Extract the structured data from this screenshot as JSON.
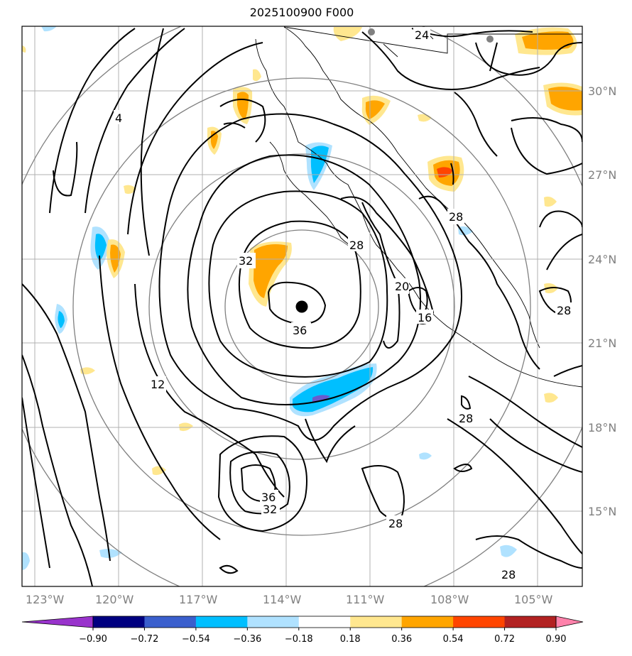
{
  "title": "2025100900 F000",
  "map": {
    "lon_ticks": [
      "123°W",
      "120°W",
      "117°W",
      "114°W",
      "111°W",
      "108°W",
      "105°W"
    ],
    "lat_ticks": [
      "30°N",
      "27°N",
      "24°N",
      "21°N",
      "18°N",
      "15°N"
    ],
    "contour_labels": [
      "4",
      "12",
      "16",
      "20",
      "24",
      "28",
      "28",
      "28",
      "28",
      "28",
      "28",
      "32",
      "32",
      "36",
      "36"
    ],
    "storm_center": {
      "lon": -113.3,
      "lat": 22.3
    },
    "range_rings": "concentric circles around storm center",
    "grid": true
  },
  "colorbar": {
    "ticks": [
      "−0.90",
      "−0.72",
      "−0.54",
      "−0.36",
      "−0.18",
      "0.18",
      "0.36",
      "0.54",
      "0.72",
      "0.90"
    ],
    "colors": [
      "#9933cc",
      "#000080",
      "#3a5fcd",
      "#00bfff",
      "#b0e2ff",
      "#ffffff",
      "#ffe78f",
      "#ffa500",
      "#ff4500",
      "#b22222",
      "#ff82ab"
    ],
    "extend": "both"
  }
}
